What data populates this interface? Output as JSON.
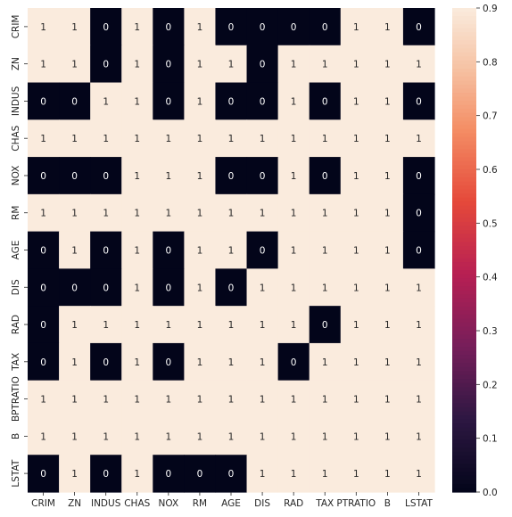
{
  "chart_data": {
    "type": "heatmap",
    "title": "",
    "xlabel": "",
    "ylabel": "",
    "x_categories": [
      "CRIM",
      "ZN",
      "INDUS",
      "CHAS",
      "NOX",
      "RM",
      "AGE",
      "DIS",
      "RAD",
      "TAX",
      "PTRATIO",
      "B",
      "LSTAT"
    ],
    "y_categories": [
      "CRIM",
      "ZN",
      "INDUS",
      "CHAS",
      "NOX",
      "RM",
      "AGE",
      "DIS",
      "RAD",
      "TAX",
      "BPTRATIO",
      "B",
      "LSTAT"
    ],
    "values": [
      [
        1,
        1,
        0,
        1,
        0,
        1,
        0,
        0,
        0,
        0,
        1,
        1,
        0
      ],
      [
        1,
        1,
        0,
        1,
        0,
        1,
        1,
        0,
        1,
        1,
        1,
        1,
        1
      ],
      [
        0,
        0,
        1,
        1,
        0,
        1,
        0,
        0,
        1,
        0,
        1,
        1,
        0
      ],
      [
        1,
        1,
        1,
        1,
        1,
        1,
        1,
        1,
        1,
        1,
        1,
        1,
        1
      ],
      [
        0,
        0,
        0,
        1,
        1,
        1,
        0,
        0,
        1,
        0,
        1,
        1,
        0
      ],
      [
        1,
        1,
        1,
        1,
        1,
        1,
        1,
        1,
        1,
        1,
        1,
        1,
        0
      ],
      [
        0,
        1,
        0,
        1,
        0,
        1,
        1,
        0,
        1,
        1,
        1,
        1,
        0
      ],
      [
        0,
        0,
        0,
        1,
        0,
        1,
        0,
        1,
        1,
        1,
        1,
        1,
        1
      ],
      [
        0,
        1,
        1,
        1,
        1,
        1,
        1,
        1,
        1,
        0,
        1,
        1,
        1
      ],
      [
        0,
        1,
        0,
        1,
        0,
        1,
        1,
        1,
        0,
        1,
        1,
        1,
        1
      ],
      [
        1,
        1,
        1,
        1,
        1,
        1,
        1,
        1,
        1,
        1,
        1,
        1,
        1
      ],
      [
        1,
        1,
        1,
        1,
        1,
        1,
        1,
        1,
        1,
        1,
        1,
        1,
        1
      ],
      [
        0,
        1,
        0,
        1,
        0,
        0,
        0,
        1,
        1,
        1,
        1,
        1,
        1
      ]
    ],
    "colorbar": {
      "min": 0.0,
      "max": 0.9,
      "ticks": [
        "0.0",
        "0.1",
        "0.2",
        "0.3",
        "0.4",
        "0.5",
        "0.6",
        "0.7",
        "0.8",
        "0.9"
      ]
    },
    "colors": {
      "low": "#03051a",
      "high": "#faebdd",
      "text_on_low": "#ffffff",
      "text_on_high": "#262626"
    },
    "annotations": true,
    "grid": false
  }
}
